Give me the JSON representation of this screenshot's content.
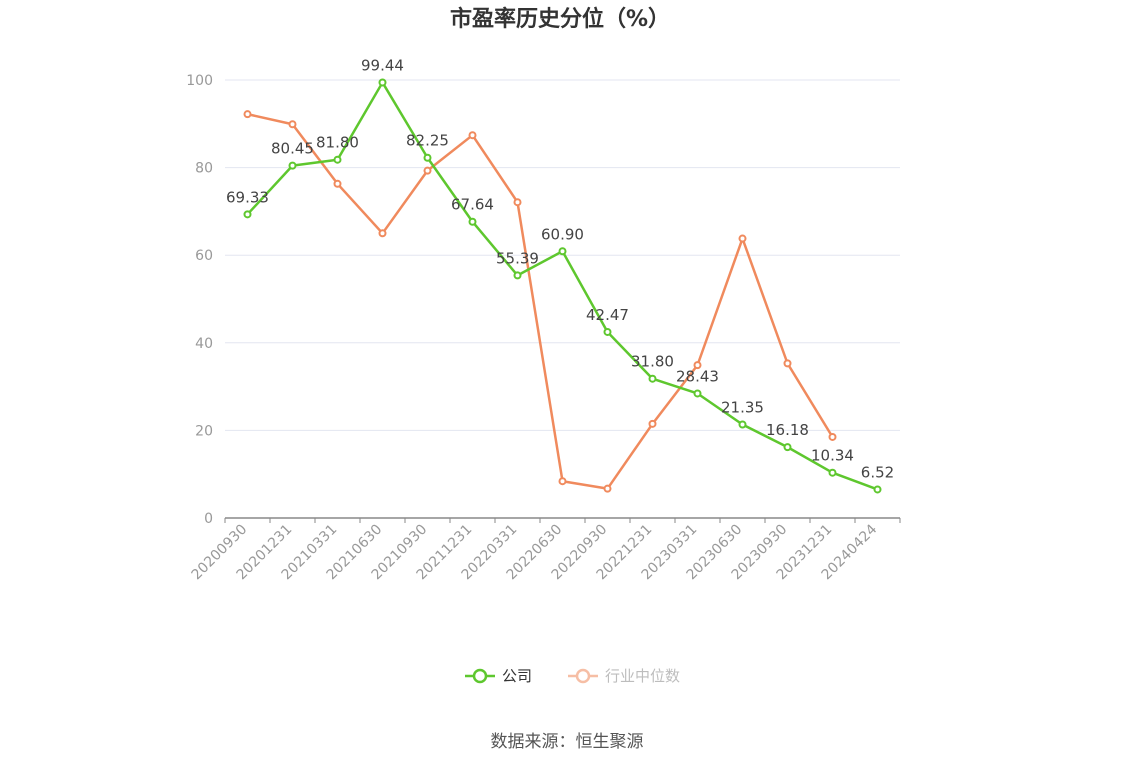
{
  "chart_data": {
    "type": "line",
    "title": "市盈率历史分位（%）",
    "categories": [
      "20200930",
      "20201231",
      "20210331",
      "20210630",
      "20210930",
      "20211231",
      "20220331",
      "20220630",
      "20220930",
      "20221231",
      "20230331",
      "20230630",
      "20230930",
      "20231231",
      "20240424"
    ],
    "series": [
      {
        "name": "公司",
        "color": "#5ec72e",
        "values": [
          69.33,
          80.45,
          81.8,
          99.44,
          82.25,
          67.64,
          55.39,
          60.9,
          42.47,
          31.8,
          28.43,
          21.35,
          16.18,
          10.34,
          6.52
        ],
        "labels": [
          "69.33",
          "80.45",
          "81.80",
          "99.44",
          "82.25",
          "67.64",
          "55.39",
          "60.90",
          "42.47",
          "31.80",
          "28.43",
          "21.35",
          "16.18",
          "10.34",
          "6.52"
        ]
      },
      {
        "name": "行业中位数",
        "color": "#f08a5d",
        "values": [
          92.2,
          89.9,
          76.3,
          65.0,
          79.3,
          87.4,
          72.1,
          8.4,
          6.7,
          21.5,
          34.9,
          63.8,
          35.3,
          18.5,
          null
        ]
      }
    ],
    "yticks": [
      0,
      20,
      40,
      60,
      80,
      100
    ],
    "ylim": [
      0,
      100
    ],
    "grid": true,
    "legend_position": "bottom"
  },
  "source_text": "数据来源：恒生聚源"
}
